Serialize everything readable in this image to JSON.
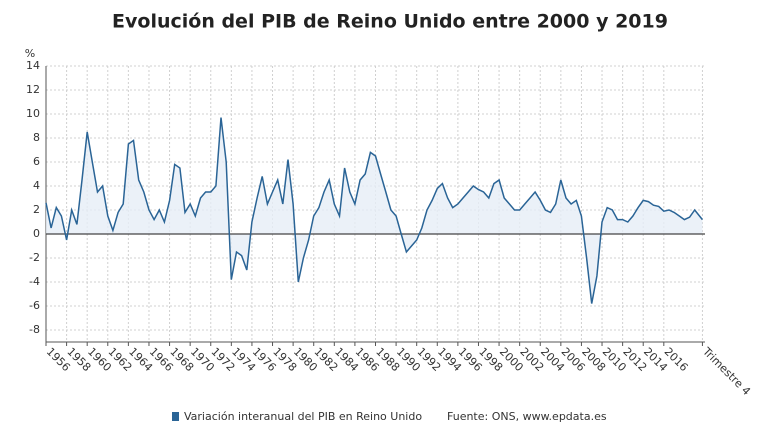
{
  "chart_data": {
    "type": "line",
    "title": "Evolución del PIB de Reino Unido entre 2000 y 2019",
    "y_label": "%",
    "source": "Fuente: ONS, www.epdata.es",
    "grid": true,
    "xlim": [
      1956,
      2020
    ],
    "ylim": [
      -9,
      14
    ],
    "yticks": [
      -8,
      -6,
      -4,
      -2,
      0,
      2,
      4,
      6,
      8,
      10,
      12,
      14
    ],
    "xticks": [
      1956,
      1958,
      1960,
      1962,
      1964,
      1966,
      1968,
      1970,
      1972,
      1974,
      1976,
      1978,
      1980,
      1982,
      1984,
      1986,
      1988,
      1990,
      1992,
      1994,
      1996,
      1998,
      2000,
      2002,
      2004,
      2006,
      2008,
      2010,
      2012,
      2014,
      2016,
      {
        "value": 2019.75,
        "label": "Trimestre 4"
      }
    ],
    "series": [
      {
        "name": "Variación interanual del PIB en Reino Unido",
        "color": "#2a6496",
        "x": [
          1956,
          1956.5,
          1957,
          1957.5,
          1958,
          1958.5,
          1959,
          1959.5,
          1960,
          1960.5,
          1961,
          1961.5,
          1962,
          1962.5,
          1963,
          1963.5,
          1964,
          1964.5,
          1965,
          1965.5,
          1966,
          1966.5,
          1967,
          1967.5,
          1968,
          1968.5,
          1969,
          1969.5,
          1970,
          1970.5,
          1971,
          1971.5,
          1972,
          1972.5,
          1973,
          1973.5,
          1974,
          1974.5,
          1975,
          1975.5,
          1976,
          1976.5,
          1977,
          1977.5,
          1978,
          1978.5,
          1979,
          1979.5,
          1980,
          1980.5,
          1981,
          1981.5,
          1982,
          1982.5,
          1983,
          1983.5,
          1984,
          1984.5,
          1985,
          1985.5,
          1986,
          1986.5,
          1987,
          1987.5,
          1988,
          1988.5,
          1989,
          1989.5,
          1990,
          1990.5,
          1991,
          1991.5,
          1992,
          1992.5,
          1993,
          1993.5,
          1994,
          1994.5,
          1995,
          1995.5,
          1996,
          1996.5,
          1997,
          1997.5,
          1998,
          1998.5,
          1999,
          1999.5,
          2000,
          2000.5,
          2001,
          2001.5,
          2002,
          2002.5,
          2003,
          2003.5,
          2004,
          2004.5,
          2005,
          2005.5,
          2006,
          2006.5,
          2007,
          2007.5,
          2008,
          2008.5,
          2009,
          2009.5,
          2010,
          2010.5,
          2011,
          2011.5,
          2012,
          2012.5,
          2013,
          2013.5,
          2014,
          2014.5,
          2015,
          2015.5,
          2016,
          2016.5,
          2017,
          2017.5,
          2018,
          2018.5,
          2019,
          2019.75
        ],
        "values": [
          2.6,
          0.5,
          2.2,
          1.5,
          -0.5,
          2.0,
          0.8,
          4.5,
          8.5,
          6.0,
          3.5,
          4.0,
          1.5,
          0.3,
          1.8,
          2.5,
          7.5,
          7.8,
          4.5,
          3.5,
          2.0,
          1.2,
          2.0,
          1.0,
          2.8,
          5.8,
          5.5,
          1.8,
          2.5,
          1.5,
          3.0,
          3.5,
          3.5,
          4.0,
          9.7,
          6.0,
          -3.8,
          -1.5,
          -1.8,
          -3.0,
          1.0,
          3.0,
          4.8,
          2.5,
          3.5,
          4.5,
          2.5,
          6.2,
          2.5,
          -4.0,
          -2.0,
          -0.5,
          1.5,
          2.2,
          3.5,
          4.5,
          2.5,
          1.5,
          5.5,
          3.5,
          2.5,
          4.5,
          5.0,
          6.8,
          6.5,
          5.0,
          3.5,
          2.0,
          1.5,
          0.0,
          -1.5,
          -1.0,
          -0.5,
          0.5,
          2.0,
          2.8,
          3.8,
          4.2,
          3.0,
          2.2,
          2.5,
          3.0,
          3.5,
          4.0,
          3.7,
          3.5,
          3.0,
          4.2,
          4.5,
          3.0,
          2.5,
          2.0,
          2.0,
          2.5,
          3.0,
          3.5,
          2.8,
          2.0,
          1.8,
          2.5,
          4.5,
          3.0,
          2.5,
          2.8,
          1.5,
          -2.0,
          -5.8,
          -3.5,
          1.0,
          2.2,
          2.0,
          1.2,
          1.2,
          1.0,
          1.5,
          2.2,
          2.8,
          2.7,
          2.4,
          2.3,
          1.9,
          2.0,
          1.8,
          1.5,
          1.2,
          1.4,
          2.0,
          1.2
        ]
      }
    ]
  }
}
